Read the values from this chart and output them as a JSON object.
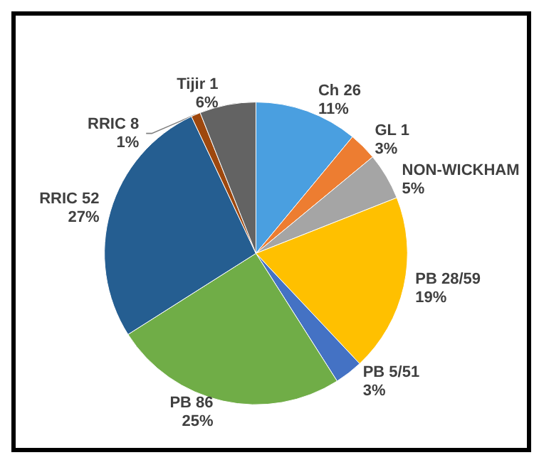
{
  "chart_data": {
    "type": "pie",
    "categories": [
      "Ch 26",
      "GL 1",
      "NON-WICKHAM",
      "PB 28/59",
      "PB 5/51",
      "PB 86",
      "RRIC 52",
      "RRIC 8",
      "Tijir 1"
    ],
    "values": [
      11,
      3,
      5,
      19,
      3,
      25,
      27,
      1,
      6
    ],
    "colors": [
      "#4a9fe0",
      "#ed7d31",
      "#a5a5a5",
      "#ffc000",
      "#4472c4",
      "#70ad47",
      "#255e91",
      "#9e480e",
      "#636363"
    ],
    "value_labels": [
      "11%",
      "3%",
      "5%",
      "19%",
      "3%",
      "25%",
      "27%",
      "1%",
      "6%"
    ]
  }
}
